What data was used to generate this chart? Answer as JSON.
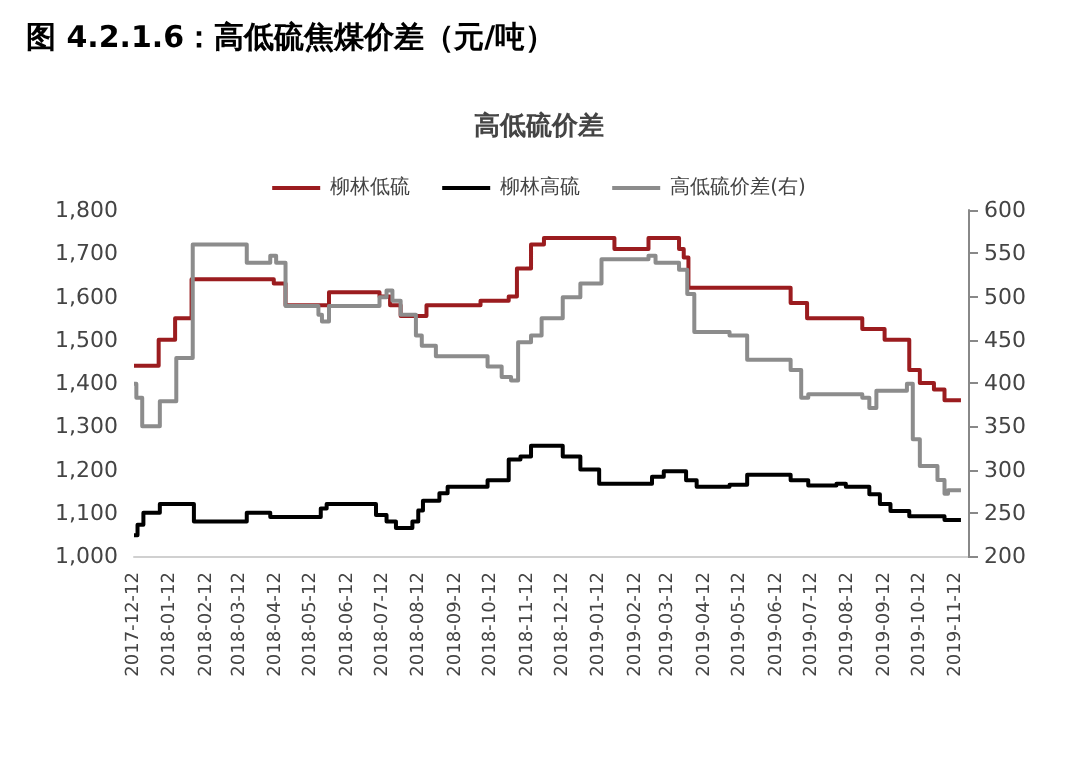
{
  "chart_data": {
    "type": "step",
    "title": "图 4.2.1.6：高低硫焦煤价差（元/吨）",
    "subtitle": "高低硫价差",
    "xlim": [
      "2017-12-12",
      "2019-11-22"
    ],
    "xticks": [
      "2017-12-12",
      "2018-01-12",
      "2018-02-12",
      "2018-03-12",
      "2018-04-12",
      "2018-05-12",
      "2018-06-12",
      "2018-07-12",
      "2018-08-12",
      "2018-09-12",
      "2018-10-12",
      "2018-11-12",
      "2018-12-12",
      "2019-01-12",
      "2019-02-12",
      "2019-03-12",
      "2019-04-12",
      "2019-05-12",
      "2019-06-12",
      "2019-07-12",
      "2019-08-12",
      "2019-09-12",
      "2019-10-12",
      "2019-11-12"
    ],
    "ylim": [
      1000,
      1800
    ],
    "yticks": [
      {
        "value": 1000,
        "label": "1,000"
      },
      {
        "value": 1100,
        "label": "1,100"
      },
      {
        "value": 1200,
        "label": "1,200"
      },
      {
        "value": 1300,
        "label": "1,300"
      },
      {
        "value": 1400,
        "label": "1,400"
      },
      {
        "value": 1500,
        "label": "1,500"
      },
      {
        "value": 1600,
        "label": "1,600"
      },
      {
        "value": 1700,
        "label": "1,700"
      },
      {
        "value": 1800,
        "label": "1,800"
      }
    ],
    "y2lim": [
      200,
      600
    ],
    "y2ticks": [
      200,
      250,
      300,
      350,
      400,
      450,
      500,
      550,
      600
    ],
    "legend": "top",
    "grid": false,
    "series": [
      {
        "name": "柳林低硫",
        "color": "#9b1c1f",
        "x": [
          "2017-12-12",
          "2018-01-02",
          "2018-01-16",
          "2018-01-30",
          "2018-04-10",
          "2018-04-20",
          "2018-05-27",
          "2018-07-09",
          "2018-07-18",
          "2018-07-27",
          "2018-08-18",
          "2018-10-03",
          "2018-10-27",
          "2018-11-03",
          "2018-11-15",
          "2018-11-26",
          "2019-01-25",
          "2019-02-23",
          "2019-03-21",
          "2019-03-25",
          "2019-03-29",
          "2019-06-24",
          "2019-07-08",
          "2019-08-24",
          "2019-09-12",
          "2019-10-03",
          "2019-10-12",
          "2019-10-24",
          "2019-11-02",
          "2019-11-16"
        ],
        "values": [
          1440,
          1500,
          1550,
          1640,
          1630,
          1580,
          1610,
          1600,
          1580,
          1555,
          1580,
          1590,
          1600,
          1665,
          1720,
          1735,
          1710,
          1735,
          1710,
          1690,
          1620,
          1585,
          1550,
          1525,
          1500,
          1430,
          1400,
          1385,
          1360,
          1360
        ]
      },
      {
        "name": "柳林高硫",
        "color": "#000000",
        "x": [
          "2017-12-12",
          "2017-12-15",
          "2017-12-20",
          "2018-01-03",
          "2018-02-01",
          "2018-03-18",
          "2018-04-07",
          "2018-05-20",
          "2018-05-25",
          "2018-07-06",
          "2018-07-15",
          "2018-07-23",
          "2018-08-06",
          "2018-08-11",
          "2018-08-15",
          "2018-08-29",
          "2018-09-05",
          "2018-10-09",
          "2018-10-27",
          "2018-11-06",
          "2018-11-15",
          "2018-12-12",
          "2018-12-27",
          "2019-01-12",
          "2019-02-26",
          "2019-03-08",
          "2019-03-27",
          "2019-04-05",
          "2019-05-03",
          "2019-05-18",
          "2019-06-24",
          "2019-07-09",
          "2019-08-02",
          "2019-08-10",
          "2019-08-30",
          "2019-09-08",
          "2019-09-17",
          "2019-10-03",
          "2019-11-02",
          "2019-11-16"
        ],
        "values": [
          1048,
          1072,
          1100,
          1120,
          1080,
          1100,
          1090,
          1110,
          1120,
          1095,
          1080,
          1065,
          1080,
          1105,
          1128,
          1145,
          1160,
          1175,
          1223,
          1230,
          1255,
          1230,
          1200,
          1167,
          1183,
          1196,
          1175,
          1160,
          1165,
          1188,
          1175,
          1163,
          1167,
          1160,
          1143,
          1120,
          1104,
          1092,
          1083,
          1083
        ]
      },
      {
        "name": "高低硫价差(右)",
        "color": "#8c8c8c",
        "axis": "y2",
        "x": [
          "2017-12-12",
          "2017-12-14",
          "2017-12-19",
          "2018-01-03",
          "2018-01-17",
          "2018-01-31",
          "2018-03-18",
          "2018-04-07",
          "2018-04-12",
          "2018-04-20",
          "2018-05-18",
          "2018-05-21",
          "2018-05-27",
          "2018-07-09",
          "2018-07-15",
          "2018-07-20",
          "2018-07-27",
          "2018-08-09",
          "2018-08-14",
          "2018-08-26",
          "2018-10-09",
          "2018-10-21",
          "2018-10-29",
          "2018-11-04",
          "2018-11-15",
          "2018-11-24",
          "2018-12-12",
          "2018-12-27",
          "2019-01-14",
          "2019-02-23",
          "2019-03-01",
          "2019-03-21",
          "2019-03-28",
          "2019-04-03",
          "2019-05-03",
          "2019-05-18",
          "2019-06-24",
          "2019-07-03",
          "2019-07-09",
          "2019-08-24",
          "2019-08-30",
          "2019-09-05",
          "2019-10-01",
          "2019-10-06",
          "2019-10-12",
          "2019-10-27",
          "2019-11-02",
          "2019-11-05",
          "2019-11-16"
        ],
        "values": [
          399,
          383,
          350,
          379,
          429,
          560,
          539,
          547,
          539,
          489,
          479,
          471,
          489,
          499,
          507,
          495,
          479,
          455,
          443,
          431,
          419,
          407,
          403,
          447,
          455,
          475,
          499,
          515,
          543,
          547,
          539,
          531,
          503,
          459,
          455,
          427,
          415,
          383,
          387,
          383,
          371,
          391,
          399,
          335,
          304,
          288,
          272,
          276,
          276
        ]
      }
    ]
  }
}
